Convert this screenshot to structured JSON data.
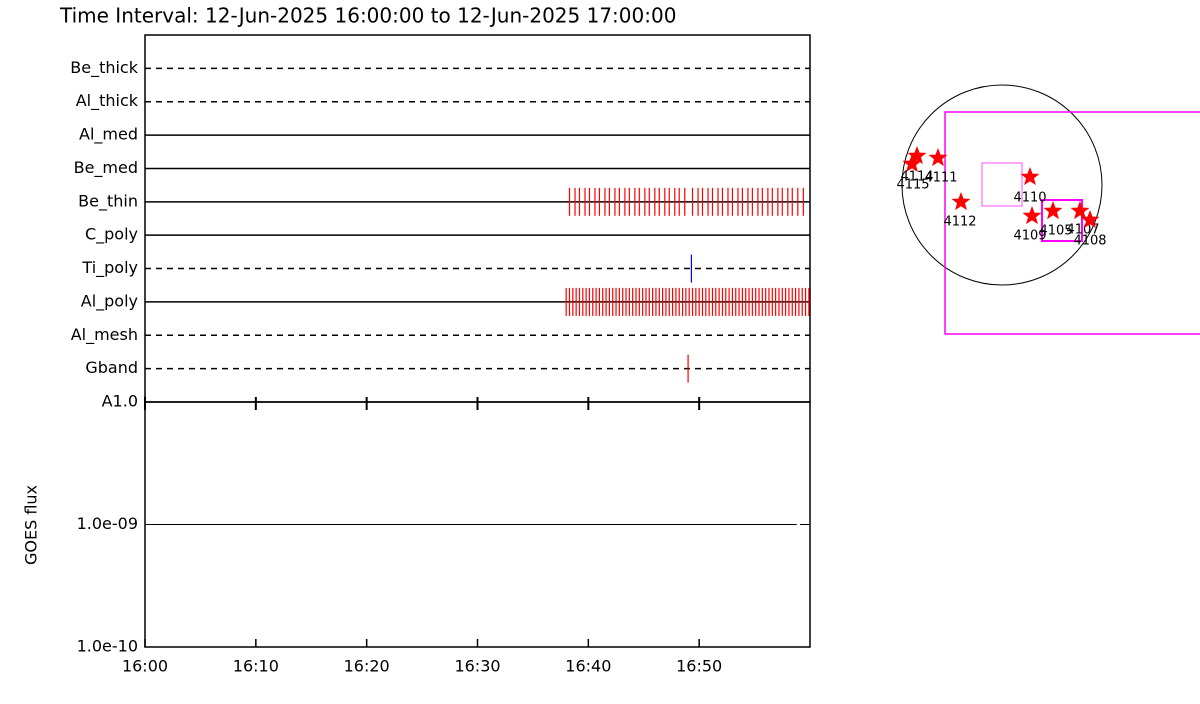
{
  "chart_data": [
    {
      "type": "timeline",
      "title": "Time Interval: 12-Jun-2025 16:00:00 to 12-Jun-2025 17:00:00",
      "categories": [
        "Be_thick",
        "Al_thick",
        "Al_med",
        "Be_med",
        "Be_thin",
        "C_poly",
        "Ti_poly",
        "Al_poly",
        "Al_mesh",
        "Gband"
      ],
      "line_styles": [
        "dashed",
        "dashed",
        "solid",
        "solid",
        "solid",
        "solid",
        "dashed",
        "solid",
        "dashed",
        "dashed"
      ],
      "event_colors": [
        "#ff0000",
        "#ff0000",
        "#ff0000",
        "#ff0000",
        "#ff0000",
        "#ff0000",
        "#0000ff",
        "#ff0000",
        "#ff0000",
        "#ff0000"
      ],
      "events": [
        [],
        [],
        [],
        [],
        [
          38.3,
          38.8,
          39.2,
          39.7,
          40.1,
          40.6,
          41.0,
          41.5,
          41.9,
          42.4,
          42.8,
          43.3,
          43.7,
          44.2,
          44.6,
          45.1,
          45.5,
          46.0,
          46.4,
          46.9,
          47.3,
          47.8,
          48.2,
          48.7,
          49.4,
          49.9,
          50.3,
          50.8,
          51.2,
          51.7,
          52.1,
          52.6,
          53.0,
          53.5,
          53.9,
          54.4,
          54.8,
          55.3,
          55.7,
          56.2,
          56.6,
          57.1,
          57.5,
          58.0,
          58.4,
          58.9,
          59.4
        ],
        [],
        [
          49.3
        ],
        [
          38.0,
          38.3,
          38.6,
          38.9,
          39.2,
          39.5,
          39.8,
          40.1,
          40.4,
          40.7,
          41.0,
          41.3,
          41.6,
          41.9,
          42.2,
          42.5,
          42.8,
          43.1,
          43.4,
          43.7,
          44.0,
          44.3,
          44.6,
          44.9,
          45.2,
          45.5,
          45.8,
          46.1,
          46.4,
          46.7,
          47.0,
          47.3,
          47.6,
          47.9,
          48.2,
          48.5,
          48.8,
          49.1,
          49.4,
          49.7,
          50.0,
          50.3,
          50.6,
          50.9,
          51.2,
          51.5,
          51.8,
          52.1,
          52.4,
          52.7,
          53.0,
          53.3,
          53.6,
          53.9,
          54.2,
          54.5,
          54.8,
          55.1,
          55.4,
          55.7,
          56.0,
          56.3,
          56.6,
          56.9,
          57.2,
          57.5,
          57.8,
          58.1,
          58.4,
          58.7,
          59.0,
          59.3,
          59.6,
          59.9
        ],
        [],
        [
          49.0
        ]
      ]
    },
    {
      "type": "line",
      "ylabel": "GOES flux",
      "log_scale": true,
      "xlim": [
        0,
        60
      ],
      "xticks": [
        {
          "value": 0,
          "label": "16:00"
        },
        {
          "value": 10,
          "label": "16:10"
        },
        {
          "value": 20,
          "label": "16:20"
        },
        {
          "value": 30,
          "label": "16:30"
        },
        {
          "value": 40,
          "label": "16:40"
        },
        {
          "value": 50,
          "label": "16:50"
        }
      ],
      "ylim": [
        1e-10,
        1e-08
      ],
      "yticks": [
        {
          "value": 1e-10,
          "label": "1.0e-10"
        },
        {
          "value": 1e-09,
          "label": "1.0e-09"
        },
        {
          "value": 1e-08,
          "label": "A1.0"
        }
      ],
      "x": [
        0.9,
        58.8
      ],
      "series": [
        {
          "color": "#000000",
          "values": [
            1e-09,
            1e-09
          ]
        }
      ]
    }
  ],
  "map": {
    "active_regions": [
      "4115",
      "4114",
      "4111",
      "4112",
      "4110",
      "4109",
      "4105",
      "4107",
      "4108"
    ],
    "star_color": "#ff0000",
    "box_color": "#ff00ff"
  }
}
